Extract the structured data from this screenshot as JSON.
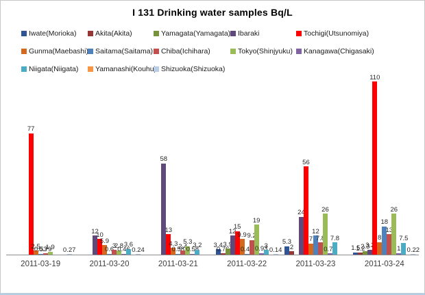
{
  "chart_data": {
    "type": "bar",
    "title": "I 131 Drinking water samples Bq/L",
    "xlabel": "",
    "ylabel": "Bq/L",
    "ylim": [
      0,
      115
    ],
    "grid": false,
    "legend_position": "top",
    "value_labels": true,
    "categories": [
      "2011-03-19",
      "2011-03-20",
      "2011-03-21",
      "2011-03-22",
      "2011-03-23",
      "2011-03-24"
    ],
    "series": [
      {
        "name": "Iwate(Morioka)",
        "color": "#2f5597",
        "values": [
          null,
          null,
          null,
          3.4,
          5.3,
          1.5
        ]
      },
      {
        "name": "Akita(Akita)",
        "color": "#953735",
        "values": [
          null,
          null,
          null,
          0.76,
          2,
          1.2
        ]
      },
      {
        "name": "Yamagata(Yamagata)",
        "color": "#76923c",
        "values": [
          null,
          null,
          null,
          3.9,
          null,
          2.3
        ]
      },
      {
        "name": "Ibaraki",
        "color": "#5f497a",
        "values": [
          null,
          12,
          58,
          12,
          24,
          3.2
        ]
      },
      {
        "name": "Tochigi(Utsunomiya)",
        "color": "#fe0000",
        "values": [
          77,
          10,
          13,
          15,
          56,
          110
        ]
      },
      {
        "name": "Gunma(Maebashi)",
        "color": "#d2691e",
        "values": [
          2.5,
          5.9,
          4.3,
          9.9,
          7,
          8
        ]
      },
      {
        "name": "Saitama(Saitama)",
        "color": "#4f81bd",
        "values": [
          0.53,
          0.6,
          0.58,
          0.48,
          12,
          18
        ]
      },
      {
        "name": "Chiba(Ichihara)",
        "color": "#c0504d",
        "values": [
          0.79,
          3,
          2.4,
          9.2,
          7.8,
          13
        ]
      },
      {
        "name": "Tokyo(Shinjyuku)",
        "color": "#9bbb59",
        "values": [
          1.9,
          2.8,
          5.3,
          19,
          26,
          26
        ]
      },
      {
        "name": "Kanagawa(Chigasaki)",
        "color": "#8064a2",
        "values": [
          null,
          0.46,
          0.58,
          0.93,
          0.75,
          1
        ]
      },
      {
        "name": "Niigata(Niigata)",
        "color": "#4bacc6",
        "values": [
          null,
          3.6,
          3.2,
          3,
          7.8,
          7.5
        ]
      },
      {
        "name": "Yamanashi(Kouhu)",
        "color": "#f79646",
        "values": [
          null,
          null,
          null,
          null,
          null,
          null
        ]
      },
      {
        "name": "Shizuoka(Shizuoka)",
        "color": "#b9cde5",
        "values": [
          0.27,
          0.24,
          null,
          0.14,
          null,
          0.22
        ]
      }
    ]
  }
}
